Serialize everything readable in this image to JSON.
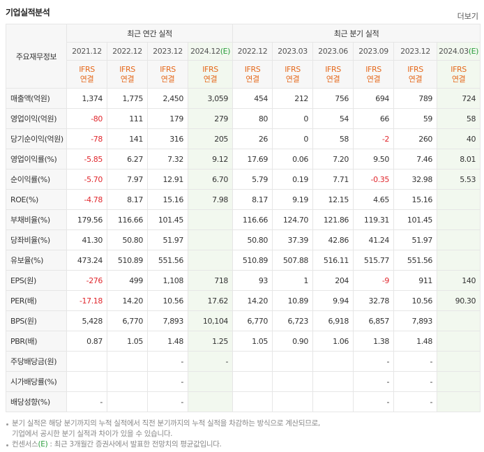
{
  "header": {
    "title": "기업실적분석",
    "more": "더보기"
  },
  "table": {
    "corner": "주요재무정보",
    "groups": [
      {
        "label": "최근 연간 실적",
        "columns": [
          {
            "period": "2021.12",
            "basis": "IFRS",
            "scope": "연결"
          },
          {
            "period": "2022.12",
            "basis": "IFRS",
            "scope": "연결"
          },
          {
            "period": "2023.12",
            "basis": "IFRS",
            "scope": "연결"
          },
          {
            "period": "2024.12",
            "estimate": "(E)",
            "basis": "IFRS",
            "scope": "연결"
          }
        ]
      },
      {
        "label": "최근 분기 실적",
        "columns": [
          {
            "period": "2022.12",
            "basis": "IFRS",
            "scope": "연결"
          },
          {
            "period": "2023.03",
            "basis": "IFRS",
            "scope": "연결"
          },
          {
            "period": "2023.06",
            "basis": "IFRS",
            "scope": "연결"
          },
          {
            "period": "2023.09",
            "basis": "IFRS",
            "scope": "연결"
          },
          {
            "period": "2023.12",
            "basis": "IFRS",
            "scope": "연결"
          },
          {
            "period": "2024.03",
            "estimate": "(E)",
            "basis": "IFRS",
            "scope": "연결"
          }
        ]
      }
    ],
    "sections": [
      [
        {
          "label": "매출액(억원)",
          "values": [
            "1,374",
            "1,775",
            "2,450",
            "3,059",
            "454",
            "212",
            "756",
            "694",
            "789",
            "724"
          ]
        },
        {
          "label": "영업이익(억원)",
          "values": [
            "-80",
            "111",
            "179",
            "279",
            "80",
            "0",
            "54",
            "66",
            "59",
            "58"
          ]
        },
        {
          "label": "당기순이익(억원)",
          "values": [
            "-78",
            "141",
            "316",
            "205",
            "26",
            "0",
            "58",
            "-2",
            "260",
            "40"
          ]
        }
      ],
      [
        {
          "label": "영업이익률(%)",
          "values": [
            "-5.85",
            "6.27",
            "7.32",
            "9.12",
            "17.69",
            "0.06",
            "7.20",
            "9.50",
            "7.46",
            "8.01"
          ]
        },
        {
          "label": "순이익률(%)",
          "values": [
            "-5.70",
            "7.97",
            "12.91",
            "6.70",
            "5.79",
            "0.19",
            "7.71",
            "-0.35",
            "32.98",
            "5.53"
          ]
        },
        {
          "label": "ROE(%)",
          "values": [
            "-4.78",
            "8.17",
            "15.16",
            "7.98",
            "8.17",
            "9.19",
            "12.15",
            "4.65",
            "15.16",
            null
          ]
        }
      ],
      [
        {
          "label": "부채비율(%)",
          "values": [
            "179.56",
            "116.66",
            "101.45",
            null,
            "116.66",
            "124.70",
            "121.86",
            "119.31",
            "101.45",
            null
          ]
        },
        {
          "label": "당좌비율(%)",
          "values": [
            "41.30",
            "50.80",
            "51.97",
            null,
            "50.80",
            "37.39",
            "42.86",
            "41.24",
            "51.97",
            null
          ]
        },
        {
          "label": "유보율(%)",
          "values": [
            "473.24",
            "510.89",
            "551.56",
            null,
            "510.89",
            "507.88",
            "516.11",
            "515.77",
            "551.56",
            null
          ]
        }
      ],
      [
        {
          "label": "EPS(원)",
          "values": [
            "-276",
            "499",
            "1,108",
            "718",
            "93",
            "1",
            "204",
            "-9",
            "911",
            "140"
          ]
        },
        {
          "label": "PER(배)",
          "values": [
            "-17.18",
            "14.20",
            "10.56",
            "17.62",
            "14.20",
            "10.89",
            "9.94",
            "32.78",
            "10.56",
            "90.30"
          ]
        },
        {
          "label": "BPS(원)",
          "values": [
            "5,428",
            "6,770",
            "7,893",
            "10,104",
            "6,770",
            "6,723",
            "6,918",
            "6,857",
            "7,893",
            null
          ]
        },
        {
          "label": "PBR(배)",
          "values": [
            "0.87",
            "1.05",
            "1.48",
            "1.25",
            "1.05",
            "0.90",
            "1.06",
            "1.38",
            "1.48",
            null
          ]
        }
      ],
      [
        {
          "label": "주당배당금(원)",
          "values": [
            null,
            null,
            "-",
            "-",
            null,
            null,
            null,
            "-",
            "-",
            null
          ]
        },
        {
          "label": "시가배당률(%)",
          "values": [
            null,
            null,
            "-",
            null,
            null,
            null,
            null,
            "-",
            "-",
            null
          ]
        },
        {
          "label": "배당성향(%)",
          "values": [
            "-",
            null,
            "-",
            null,
            null,
            null,
            null,
            "-",
            "-",
            null
          ]
        }
      ]
    ]
  },
  "notes": [
    {
      "lines": [
        "분기 실적은 해당 분기까지의 누적 실적에서 직전 분기까지의 누적 실적을 차감하는 방식으로 계산되므로,",
        "기업에서 공시한 분기 실적과 차이가 있을 수 있습니다."
      ]
    },
    {
      "parts": [
        "컨센서스",
        "(E)",
        " : 최근 3개월간 증권사에서 발표한 전망치의 평균값입니다."
      ]
    }
  ]
}
